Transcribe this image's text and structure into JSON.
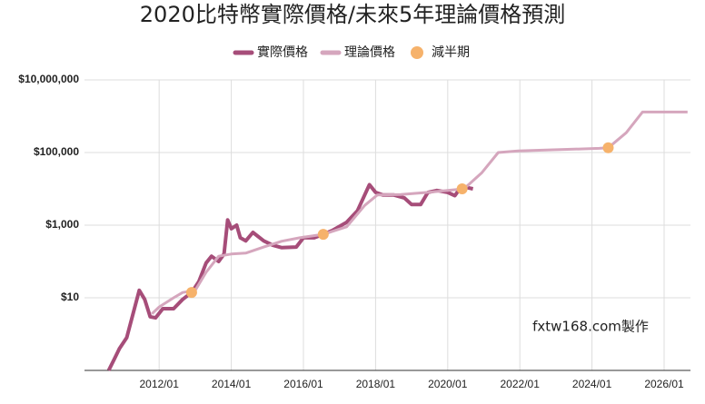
{
  "chart_data": {
    "type": "line",
    "title": "2020比特幣實際價格/未來5年理論價格預測",
    "annotation": "fxtw168.com製作",
    "log_y": true,
    "grid": true,
    "legend": "top",
    "xlim": [
      2009.93,
      2026.73
    ],
    "ylim": [
      0.1,
      10000000
    ],
    "xticks": [
      {
        "value": 2012,
        "label": "2012/01"
      },
      {
        "value": 2014,
        "label": "2014/01"
      },
      {
        "value": 2016,
        "label": "2016/01"
      },
      {
        "value": 2018,
        "label": "2018/01"
      },
      {
        "value": 2020,
        "label": "2020/01"
      },
      {
        "value": 2022,
        "label": "2022/01"
      },
      {
        "value": 2024,
        "label": "2024/01"
      },
      {
        "value": 2026,
        "label": "2026/01"
      }
    ],
    "yticks": [
      {
        "value": 10,
        "label": "$10"
      },
      {
        "value": 1000,
        "label": "$1,000"
      },
      {
        "value": 100000,
        "label": "$100,000"
      },
      {
        "value": 10000000,
        "label": "$10,000,000"
      }
    ],
    "series": [
      {
        "name": "實際價格",
        "color": "#a64d79",
        "mode": "line",
        "width": 4,
        "x": [
          2010.6,
          2010.75,
          2010.9,
          2011.1,
          2011.45,
          2011.6,
          2011.75,
          2011.9,
          2012.1,
          2012.4,
          2012.65,
          2012.9,
          2013.1,
          2013.3,
          2013.45,
          2013.65,
          2013.8,
          2013.9,
          2014.0,
          2014.15,
          2014.25,
          2014.4,
          2014.6,
          2014.9,
          2015.15,
          2015.4,
          2015.8,
          2016.0,
          2016.3,
          2016.55,
          2016.8,
          2017.2,
          2017.5,
          2017.83,
          2018.0,
          2018.2,
          2018.5,
          2018.8,
          2019.0,
          2019.25,
          2019.45,
          2019.7,
          2020.0,
          2020.2,
          2020.3,
          2020.5,
          2020.7
        ],
        "values": [
          0.1,
          0.2,
          0.4,
          0.8,
          16,
          9,
          3,
          2.8,
          5,
          5,
          9,
          14,
          28,
          90,
          140,
          100,
          160,
          1400,
          800,
          1000,
          450,
          370,
          630,
          370,
          280,
          240,
          250,
          450,
          450,
          560,
          710,
          1200,
          2500,
          13000,
          8000,
          6800,
          6800,
          5600,
          3700,
          3700,
          8000,
          9000,
          8000,
          6500,
          9000,
          11000,
          10000
        ]
      },
      {
        "name": "理論價格",
        "color": "#d5a6bd",
        "mode": "line",
        "width": 3,
        "x": [
          2011.8,
          2012.0,
          2012.4,
          2012.65,
          2013.0,
          2013.3,
          2013.65,
          2014.0,
          2014.4,
          2014.9,
          2015.4,
          2015.9,
          2016.55,
          2017.2,
          2017.7,
          2018.05,
          2018.7,
          2019.45,
          2020.0,
          2020.45,
          2020.95,
          2021.4,
          2021.95,
          2024.2,
          2024.45,
          2024.95,
          2025.4,
          2026.65
        ],
        "values": [
          3.6,
          5.6,
          10,
          14,
          16,
          50,
          140,
          160,
          170,
          250,
          360,
          450,
          560,
          900,
          3500,
          6800,
          7000,
          8000,
          9000,
          10000,
          28000,
          100000,
          110000,
          130000,
          135000,
          350000,
          1300000,
          1300000
        ]
      },
      {
        "name": "減半期",
        "color": "#f6b26b",
        "mode": "markers",
        "x": [
          2012.9,
          2016.55,
          2020.4,
          2024.45
        ],
        "values": [
          14,
          560,
          10000,
          135000
        ]
      }
    ]
  }
}
